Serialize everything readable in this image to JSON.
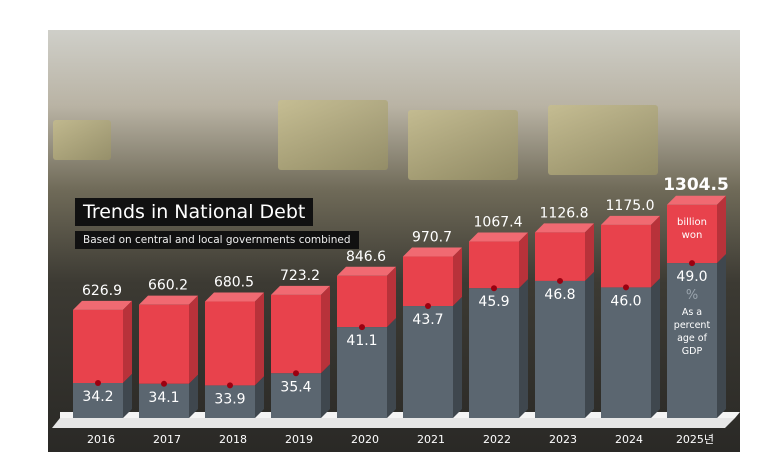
{
  "chart_data": {
    "type": "bar",
    "title": "Trends in National Debt",
    "subtitle": "Based on central and local governments combined",
    "categories": [
      "2016",
      "2017",
      "2018",
      "2019",
      "2020",
      "2021",
      "2022",
      "2023",
      "2024",
      "2025년"
    ],
    "series": [
      {
        "name": "billion won",
        "values": [
          626.9,
          660.2,
          680.5,
          723.2,
          846.6,
          970.7,
          1067.4,
          1126.8,
          1175.0,
          1304.5
        ]
      },
      {
        "name": "% As a percent age of GDP",
        "values": [
          34.2,
          34.1,
          33.9,
          35.4,
          41.1,
          43.7,
          45.9,
          46.8,
          46.0,
          49.0
        ]
      }
    ],
    "value_labels": [
      "626.9",
      "660.2",
      "680.5",
      "723.2",
      "846.6",
      "970.7",
      "1067.4",
      "1126.8",
      "1175.0",
      "1304.5"
    ],
    "pct_labels": [
      "34.2",
      "34.1",
      "33.9",
      "35.4",
      "41.1",
      "43.7",
      "45.9",
      "46.8",
      "46.0",
      "49.0"
    ],
    "legend": {
      "unit_debt": [
        "billion",
        "won"
      ],
      "unit_pct": "%",
      "pct_desc": [
        "As a",
        "percent",
        "age of",
        "GDP"
      ]
    },
    "colors": {
      "debt": "#e8424c",
      "gdp_pct": "#5b6670",
      "marker": "#9b0010"
    }
  }
}
